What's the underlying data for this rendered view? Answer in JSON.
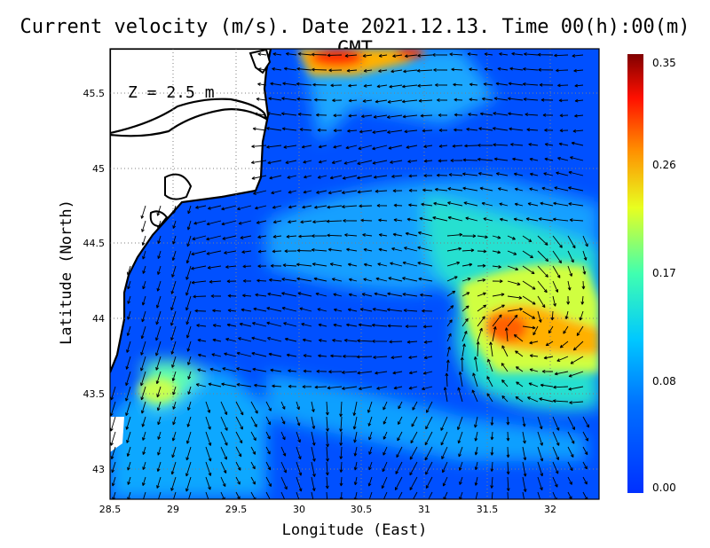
{
  "title": "Current velocity (m/s). Date 2021.12.13. Time 00(h):00(m) GMT",
  "depth_label": "Z = 2.5 m",
  "xlabel": "Longitude (East)",
  "ylabel": "Latitude (North)",
  "chart_data": {
    "type": "heatmap",
    "variable": "Current velocity",
    "units": "m/s",
    "date": "2021.12.13",
    "time": "00(h):00(m) GMT",
    "depth": "2.5 m",
    "x_ticks": [
      "28.5",
      "29",
      "29.5",
      "30",
      "30.5",
      "31",
      "31.5",
      "32"
    ],
    "y_ticks": [
      "43",
      "43.5",
      "44",
      "44.5",
      "45",
      "45.5"
    ],
    "xlim": [
      28.5,
      32.4
    ],
    "ylim": [
      42.8,
      45.8
    ],
    "colorbar": {
      "ticks": [
        "0.00",
        "0.08",
        "0.17",
        "0.26",
        "0.35"
      ],
      "min": 0.0,
      "max": 0.35
    },
    "colors": {
      "land": "#ffffff",
      "coast": "#000000",
      "low": "#0050ff",
      "high": "#7a0000"
    }
  }
}
